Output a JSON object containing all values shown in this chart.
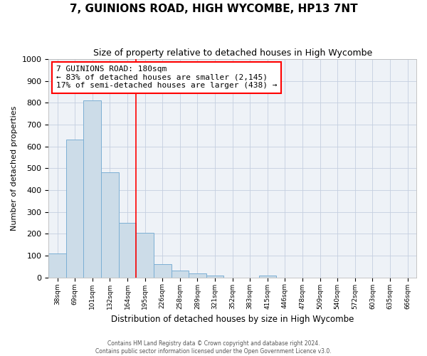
{
  "title": "7, GUINIONS ROAD, HIGH WYCOMBE, HP13 7NT",
  "subtitle": "Size of property relative to detached houses in High Wycombe",
  "xlabel": "Distribution of detached houses by size in High Wycombe",
  "ylabel": "Number of detached properties",
  "footer1": "Contains HM Land Registry data © Crown copyright and database right 2024.",
  "footer2": "Contains public sector information licensed under the Open Government Licence v3.0.",
  "categories": [
    "38sqm",
    "69sqm",
    "101sqm",
    "132sqm",
    "164sqm",
    "195sqm",
    "226sqm",
    "258sqm",
    "289sqm",
    "321sqm",
    "352sqm",
    "383sqm",
    "415sqm",
    "446sqm",
    "478sqm",
    "509sqm",
    "540sqm",
    "572sqm",
    "603sqm",
    "635sqm",
    "666sqm"
  ],
  "values": [
    110,
    630,
    810,
    480,
    250,
    205,
    60,
    30,
    18,
    10,
    0,
    0,
    10,
    0,
    0,
    0,
    0,
    0,
    0,
    0,
    0
  ],
  "bar_color": "#ccdce8",
  "bar_edge_color": "#7bafd4",
  "ylim": [
    0,
    1000
  ],
  "yticks": [
    0,
    100,
    200,
    300,
    400,
    500,
    600,
    700,
    800,
    900,
    1000
  ],
  "property_line_x": 4.5,
  "annotation_text1": "7 GUINIONS ROAD: 180sqm",
  "annotation_text2": "← 83% of detached houses are smaller (2,145)",
  "annotation_text3": "17% of semi-detached houses are larger (438) →",
  "annotation_color": "red",
  "background_color": "#eef2f7",
  "grid_color": "#c5cfe0",
  "title_fontsize": 11,
  "subtitle_fontsize": 9
}
